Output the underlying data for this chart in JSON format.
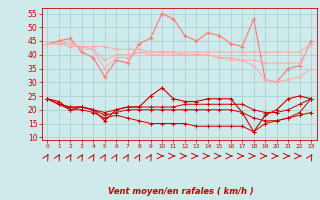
{
  "hours": [
    0,
    1,
    2,
    3,
    4,
    5,
    6,
    7,
    8,
    9,
    10,
    11,
    12,
    13,
    14,
    15,
    16,
    17,
    18,
    19,
    20,
    21,
    22,
    23
  ],
  "line1": [
    44,
    45,
    46,
    41,
    39,
    32,
    38,
    37,
    44,
    46,
    55,
    53,
    47,
    45,
    48,
    47,
    44,
    43,
    53,
    31,
    30,
    35,
    36,
    45
  ],
  "line2": [
    44,
    44,
    44,
    43,
    43,
    43,
    42,
    42,
    42,
    41,
    41,
    41,
    40,
    40,
    40,
    39,
    39,
    38,
    38,
    37,
    37,
    37,
    37,
    44
  ],
  "line3": [
    44,
    44,
    45,
    42,
    42,
    38,
    40,
    40,
    41,
    41,
    41,
    41,
    41,
    41,
    41,
    41,
    41,
    41,
    41,
    41,
    41,
    41,
    41,
    44
  ],
  "line4": [
    44,
    44,
    43,
    43,
    42,
    35,
    39,
    39,
    41,
    40,
    40,
    40,
    40,
    40,
    40,
    39,
    38,
    38,
    36,
    31,
    30,
    31,
    32,
    35
  ],
  "line5": [
    24,
    23,
    20,
    21,
    20,
    16,
    20,
    21,
    21,
    25,
    28,
    24,
    23,
    23,
    24,
    24,
    24,
    19,
    12,
    18,
    20,
    24,
    25,
    24
  ],
  "line6": [
    24,
    22,
    21,
    21,
    20,
    19,
    20,
    21,
    21,
    21,
    21,
    21,
    22,
    22,
    22,
    22,
    22,
    22,
    20,
    19,
    19,
    20,
    22,
    24
  ],
  "line7": [
    24,
    22,
    21,
    21,
    20,
    18,
    19,
    20,
    20,
    20,
    20,
    20,
    20,
    20,
    20,
    20,
    20,
    19,
    17,
    16,
    16,
    17,
    19,
    24
  ],
  "line8": [
    24,
    22,
    20,
    20,
    19,
    17,
    18,
    17,
    16,
    15,
    15,
    15,
    15,
    14,
    14,
    14,
    14,
    14,
    12,
    15,
    16,
    17,
    18,
    19
  ],
  "bg_color": "#ceeaea",
  "grid_color": "#aacccc",
  "line1_color": "#ff7777",
  "line2_color": "#ffaaaa",
  "line3_color": "#ffaaaa",
  "line4_color": "#ffaaaa",
  "line5_color": "#cc0000",
  "line6_color": "#cc0000",
  "line7_color": "#cc0000",
  "line8_color": "#cc0000",
  "xlabel": "Vent moyen/en rafales ( km/h )",
  "ylim": [
    9,
    57
  ],
  "yticks": [
    10,
    15,
    20,
    25,
    30,
    35,
    40,
    45,
    50,
    55
  ],
  "arrow_color": "#cc0000",
  "xlabel_color": "#cc0000",
  "tick_color": "#cc0000",
  "arrow_angles_deg": [
    45,
    45,
    45,
    45,
    45,
    45,
    45,
    45,
    45,
    45,
    0,
    0,
    0,
    0,
    0,
    0,
    0,
    0,
    0,
    0,
    0,
    0,
    0,
    45
  ]
}
